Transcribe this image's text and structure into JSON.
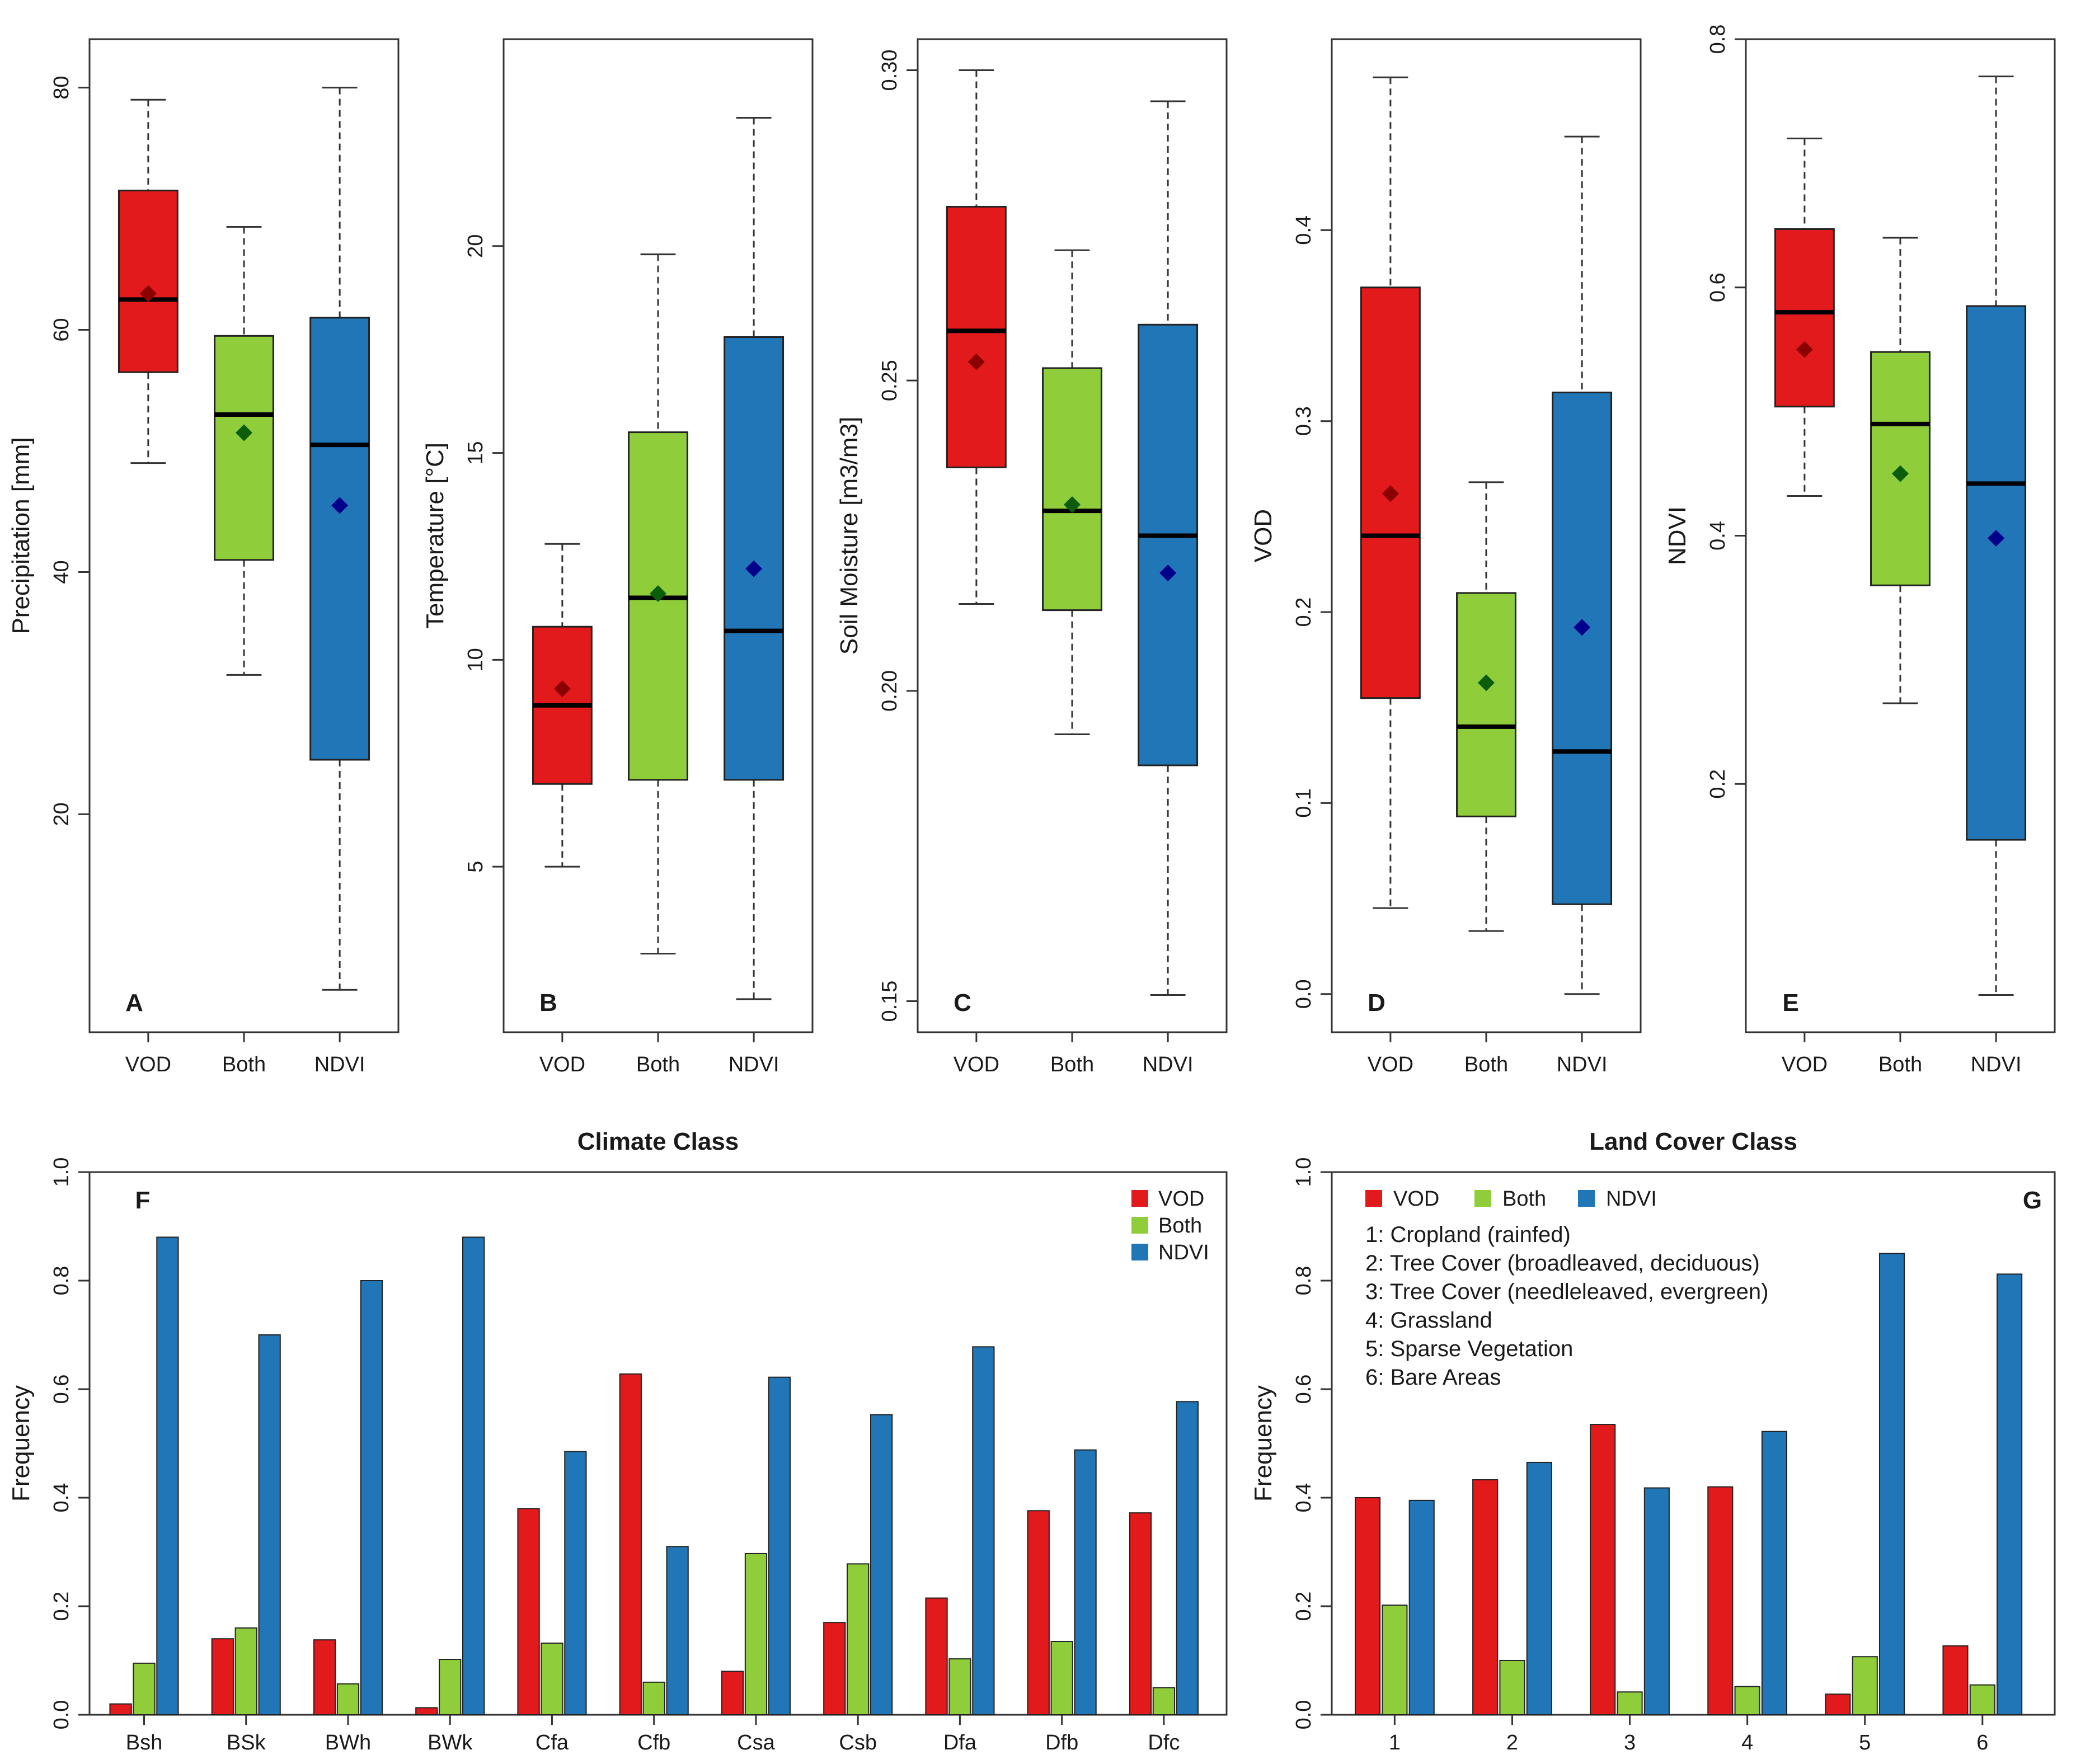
{
  "colors": {
    "VOD": "#e31a1c",
    "Both": "#8fce3a",
    "NDVI": "#2176b8",
    "mean_VOD": "#8b0000",
    "mean_Both": "#0b5d0b",
    "mean_NDVI": "#00008b"
  },
  "chart_data": [
    {
      "type": "boxplot",
      "panel_label": "A",
      "ylabel": "Precipitation [mm]",
      "ylim": [
        2,
        84
      ],
      "yticks": [
        20,
        40,
        60,
        80
      ],
      "categories": [
        "VOD",
        "Both",
        "NDVI"
      ],
      "series": [
        {
          "name": "VOD",
          "min": 49,
          "q1": 56.5,
          "median": 62.5,
          "q3": 71.5,
          "max": 79,
          "mean": 63
        },
        {
          "name": "Both",
          "min": 31.5,
          "q1": 41,
          "median": 53,
          "q3": 59.5,
          "max": 68.5,
          "mean": 51.5
        },
        {
          "name": "NDVI",
          "min": 5.5,
          "q1": 24.5,
          "median": 50.5,
          "q3": 61,
          "max": 80,
          "mean": 45.5
        }
      ]
    },
    {
      "type": "boxplot",
      "panel_label": "B",
      "ylabel": "Temperature [°C]",
      "ylim": [
        1,
        25
      ],
      "yticks": [
        5,
        10,
        15,
        20
      ],
      "categories": [
        "VOD",
        "Both",
        "NDVI"
      ],
      "series": [
        {
          "name": "VOD",
          "min": 5,
          "q1": 7,
          "median": 8.9,
          "q3": 10.8,
          "max": 12.8,
          "mean": 9.3
        },
        {
          "name": "Both",
          "min": 2.9,
          "q1": 7.1,
          "median": 11.5,
          "q3": 15.5,
          "max": 19.8,
          "mean": 11.6
        },
        {
          "name": "NDVI",
          "min": 1.8,
          "q1": 7.1,
          "median": 10.7,
          "q3": 17.8,
          "max": 23.1,
          "mean": 12.2
        }
      ]
    },
    {
      "type": "boxplot",
      "panel_label": "C",
      "ylabel": "Soil Moisture [m3/m3]",
      "ylim": [
        0.145,
        0.305
      ],
      "yticks": [
        0.15,
        0.2,
        0.25,
        0.3
      ],
      "ytick_labels": [
        "0.15",
        "0.20",
        "0.25",
        "0.30"
      ],
      "categories": [
        "VOD",
        "Both",
        "NDVI"
      ],
      "series": [
        {
          "name": "VOD",
          "min": 0.214,
          "q1": 0.236,
          "median": 0.258,
          "q3": 0.278,
          "max": 0.3,
          "mean": 0.253
        },
        {
          "name": "Both",
          "min": 0.193,
          "q1": 0.213,
          "median": 0.229,
          "q3": 0.252,
          "max": 0.271,
          "mean": 0.23
        },
        {
          "name": "NDVI",
          "min": 0.151,
          "q1": 0.188,
          "median": 0.225,
          "q3": 0.259,
          "max": 0.295,
          "mean": 0.219
        }
      ]
    },
    {
      "type": "boxplot",
      "panel_label": "D",
      "ylabel": "VOD",
      "ylim": [
        -0.02,
        0.5
      ],
      "yticks": [
        0.0,
        0.1,
        0.2,
        0.3,
        0.4
      ],
      "ytick_labels": [
        "0.0",
        "0.1",
        "0.2",
        "0.3",
        "0.4"
      ],
      "categories": [
        "VOD",
        "Both",
        "NDVI"
      ],
      "series": [
        {
          "name": "VOD",
          "min": 0.045,
          "q1": 0.155,
          "median": 0.24,
          "q3": 0.37,
          "max": 0.48,
          "mean": 0.262
        },
        {
          "name": "Both",
          "min": 0.033,
          "q1": 0.093,
          "median": 0.14,
          "q3": 0.21,
          "max": 0.268,
          "mean": 0.163
        },
        {
          "name": "NDVI",
          "min": 0.0,
          "q1": 0.047,
          "median": 0.127,
          "q3": 0.315,
          "max": 0.449,
          "mean": 0.192
        }
      ]
    },
    {
      "type": "boxplot",
      "panel_label": "E",
      "ylabel": "NDVI",
      "ylim": [
        0.0,
        0.8
      ],
      "yticks": [
        0.2,
        0.4,
        0.6,
        0.8
      ],
      "ytick_labels": [
        "0.2",
        "0.4",
        "0.6",
        "0.8"
      ],
      "categories": [
        "VOD",
        "Both",
        "NDVI"
      ],
      "series": [
        {
          "name": "VOD",
          "min": 0.432,
          "q1": 0.504,
          "median": 0.58,
          "q3": 0.647,
          "max": 0.72,
          "mean": 0.55
        },
        {
          "name": "Both",
          "min": 0.265,
          "q1": 0.36,
          "median": 0.49,
          "q3": 0.548,
          "max": 0.64,
          "mean": 0.45
        },
        {
          "name": "NDVI",
          "min": 0.03,
          "q1": 0.155,
          "median": 0.442,
          "q3": 0.585,
          "max": 0.77,
          "mean": 0.398
        }
      ]
    },
    {
      "type": "bar",
      "panel_label": "F",
      "title": "Climate Class",
      "ylabel": "Frequency",
      "ylim": [
        0,
        1
      ],
      "yticks": [
        0,
        0.2,
        0.4,
        0.6,
        0.8,
        1.0
      ],
      "ytick_labels": [
        "0.0",
        "0.2",
        "0.4",
        "0.6",
        "0.8",
        "1.0"
      ],
      "legend_position": "top-right",
      "categories": [
        "Bsh",
        "BSk",
        "BWh",
        "BWk",
        "Cfa",
        "Cfb",
        "Csa",
        "Csb",
        "Dfa",
        "Dfb",
        "Dfc"
      ],
      "series": [
        {
          "name": "VOD",
          "values": [
            0.02,
            0.14,
            0.138,
            0.013,
            0.38,
            0.628,
            0.08,
            0.17,
            0.215,
            0.376,
            0.372
          ]
        },
        {
          "name": "Both",
          "values": [
            0.095,
            0.16,
            0.057,
            0.102,
            0.132,
            0.06,
            0.297,
            0.278,
            0.103,
            0.135,
            0.05
          ]
        },
        {
          "name": "NDVI",
          "values": [
            0.88,
            0.7,
            0.8,
            0.88,
            0.485,
            0.31,
            0.622,
            0.553,
            0.678,
            0.488,
            0.577
          ]
        }
      ]
    },
    {
      "type": "bar",
      "panel_label": "G",
      "title": "Land Cover Class",
      "ylabel": "Frequency",
      "ylim": [
        0,
        1
      ],
      "yticks": [
        0,
        0.2,
        0.4,
        0.6,
        0.8,
        1.0
      ],
      "ytick_labels": [
        "0.0",
        "0.2",
        "0.4",
        "0.6",
        "0.8",
        "1.0"
      ],
      "legend_position": "top-left",
      "categories": [
        "1",
        "2",
        "3",
        "4",
        "5",
        "6"
      ],
      "series": [
        {
          "name": "VOD",
          "values": [
            0.4,
            0.433,
            0.535,
            0.42,
            0.038,
            0.127
          ]
        },
        {
          "name": "Both",
          "values": [
            0.202,
            0.1,
            0.042,
            0.052,
            0.107,
            0.055
          ]
        },
        {
          "name": "NDVI",
          "values": [
            0.395,
            0.465,
            0.418,
            0.522,
            0.85,
            0.812
          ]
        }
      ],
      "class_legend": [
        "1: Cropland (rainfed)",
        "2: Tree Cover (broadleaved, deciduous)",
        "3: Tree Cover (needleleaved, evergreen)",
        "4: Grassland",
        "5: Sparse Vegetation",
        "6: Bare Areas"
      ]
    }
  ]
}
